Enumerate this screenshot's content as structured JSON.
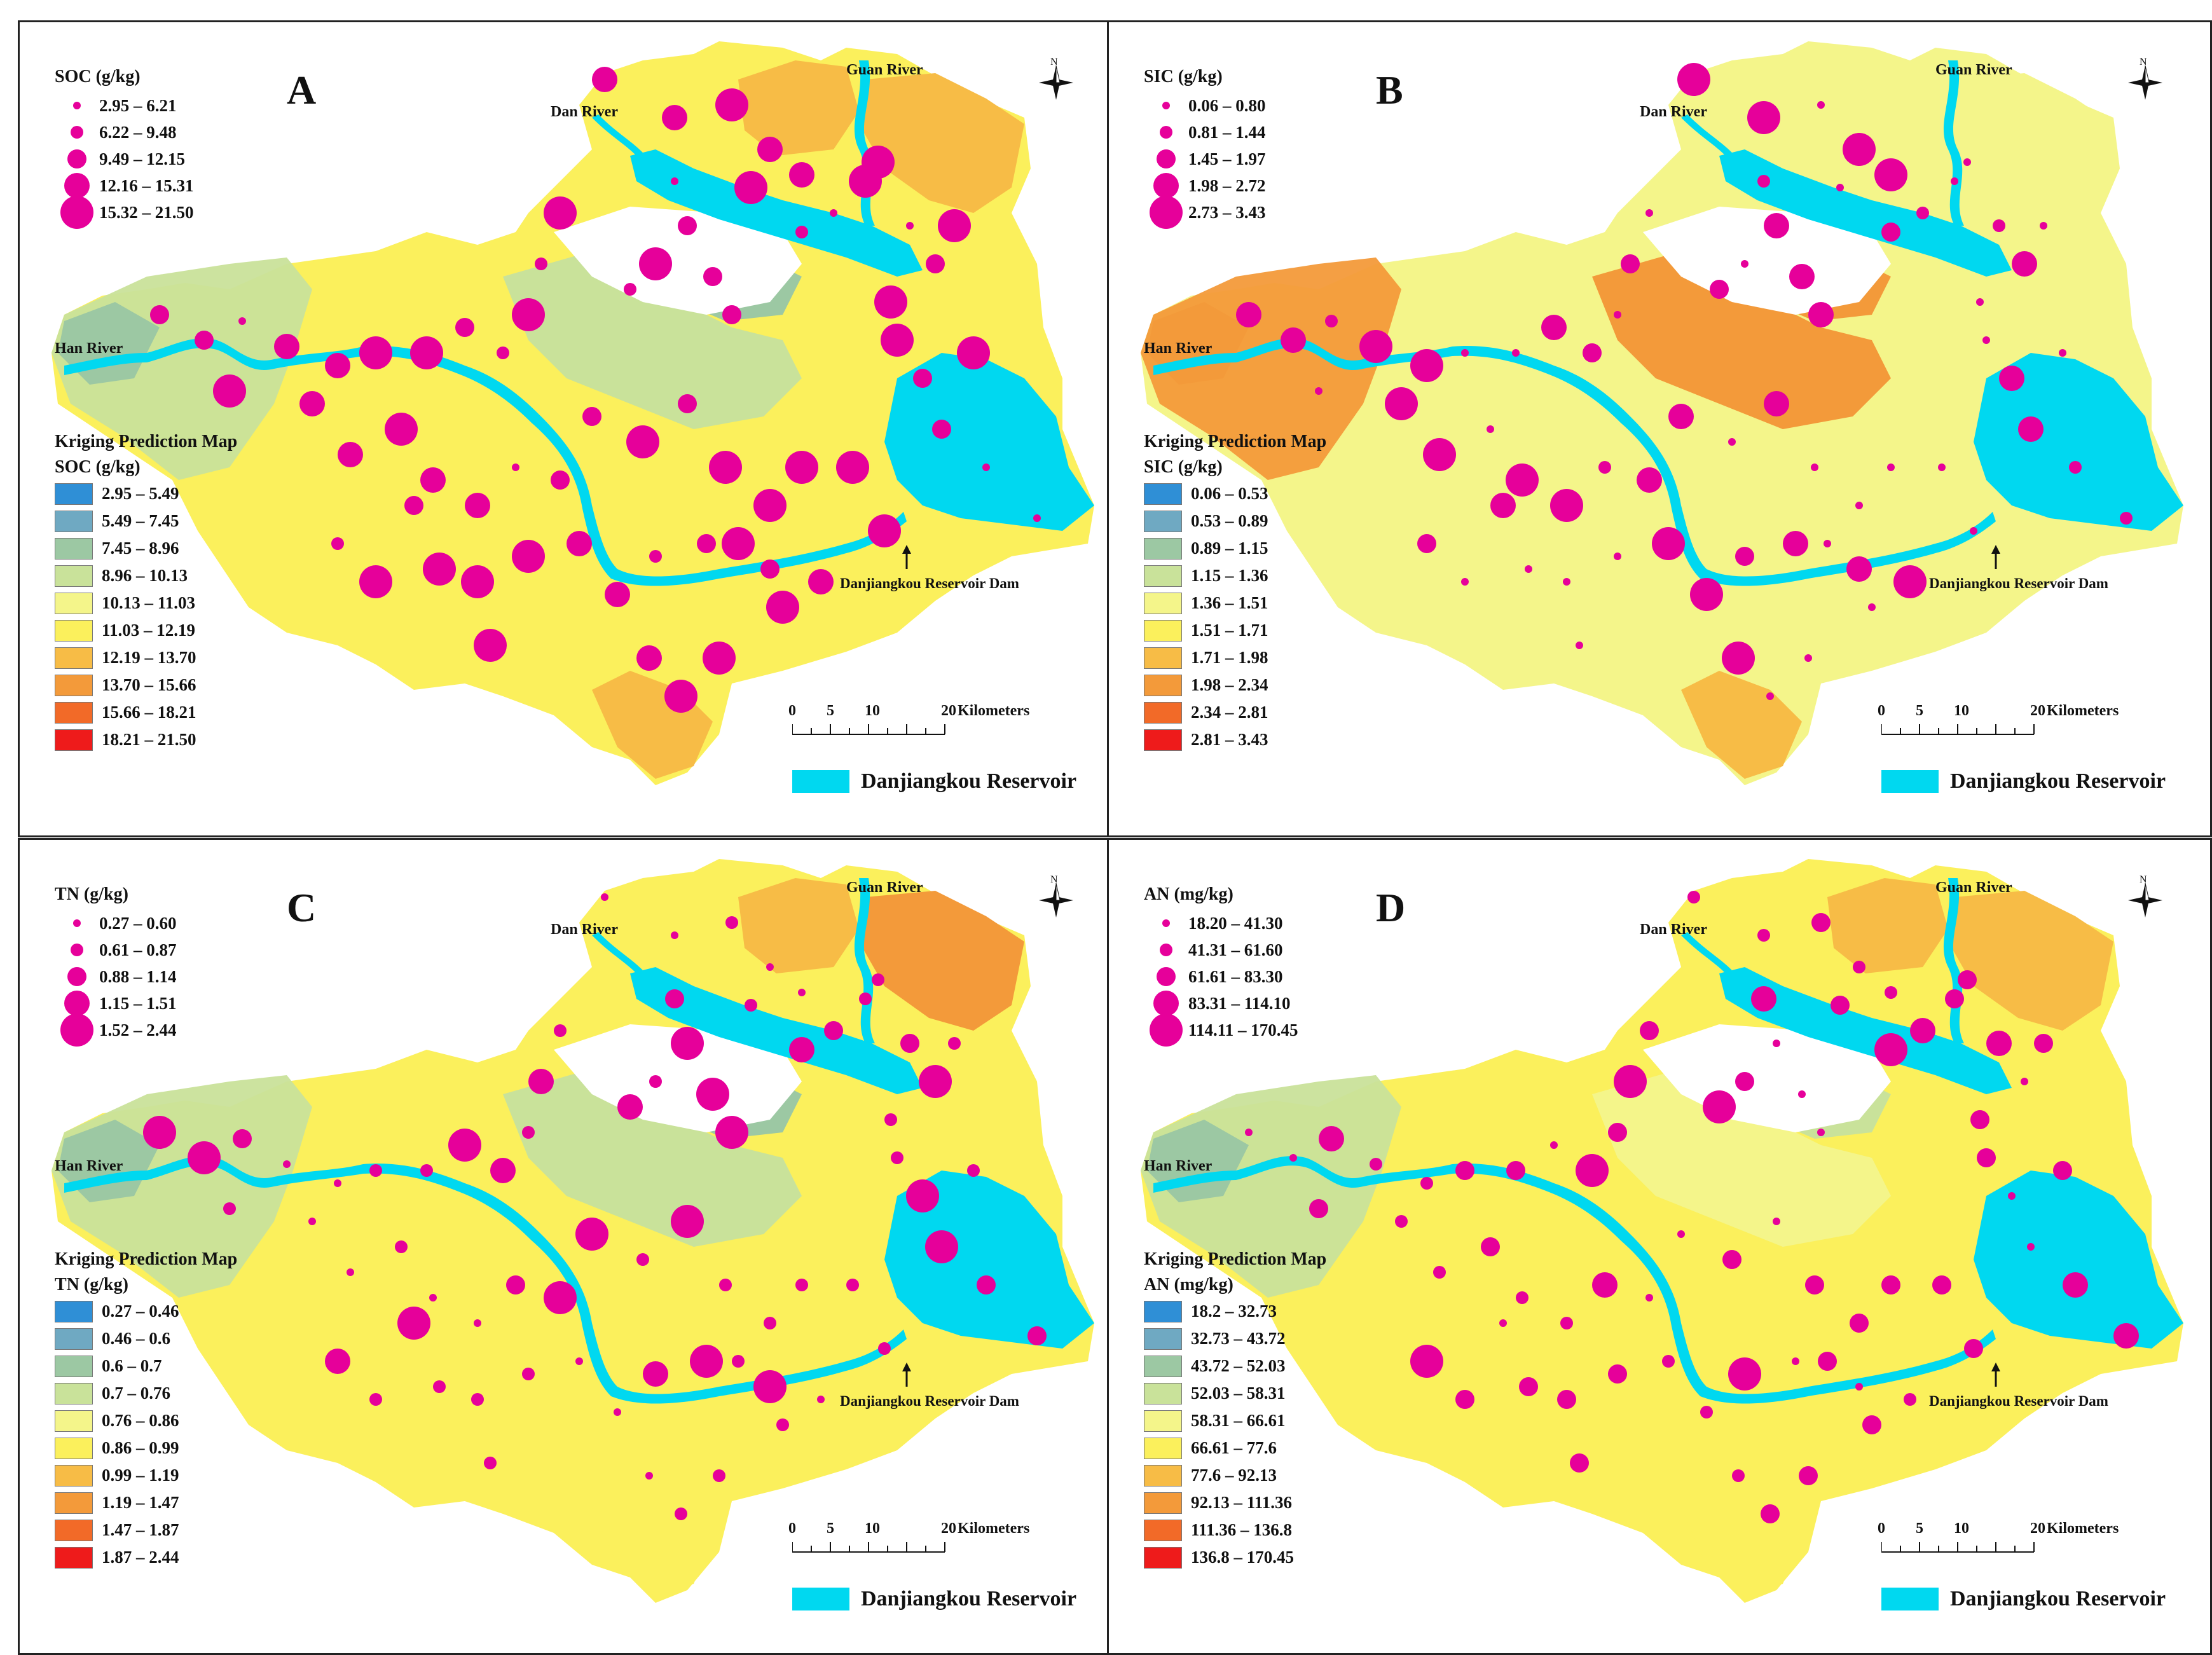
{
  "common": {
    "rivers": {
      "han": "Han River",
      "dan": "Dan River",
      "guan": "Guan River"
    },
    "dam_label": "Danjiangkou Reservoir Dam",
    "kriging_title": "Kriging Prediction Map",
    "scale": {
      "ticks": [
        "0",
        "5",
        "10",
        "20"
      ],
      "unit": "Kilometers"
    },
    "reservoir_label": "Danjiangkou Reservoir",
    "north_label": "N",
    "colors": {
      "reservoir": "#00d8f0",
      "point": "#e6009a",
      "ramp": [
        "#2f8fd6",
        "#6fa9c2",
        "#9cc8a3",
        "#c9e29a",
        "#f4f58a",
        "#fbf05c",
        "#f7bc46",
        "#f39a3a",
        "#f26a28",
        "#ee1b1b"
      ]
    }
  },
  "panels": [
    {
      "letter": "A",
      "point_title": "SOC (g/kg)",
      "point_classes": [
        "2.95 – 6.21",
        "6.22 – 9.48",
        "9.49 – 12.15",
        "12.16 – 15.31",
        "15.32 – 21.50"
      ],
      "kriging_unit": "SOC (g/kg)",
      "kriging_classes": [
        "2.95 – 5.49",
        "5.49 – 7.45",
        "7.45 – 8.96",
        "8.96 – 10.13",
        "10.13 – 11.03",
        "11.03 – 12.19",
        "12.19 – 13.70",
        "13.70 – 15.66",
        "15.66 – 18.21",
        "18.21 – 21.50"
      ]
    },
    {
      "letter": "B",
      "point_title": "SIC (g/kg)",
      "point_classes": [
        "0.06 – 0.80",
        "0.81 – 1.44",
        "1.45 – 1.97",
        "1.98 – 2.72",
        "2.73 – 3.43"
      ],
      "kriging_unit": "SIC (g/kg)",
      "kriging_classes": [
        "0.06 – 0.53",
        "0.53 – 0.89",
        "0.89 – 1.15",
        "1.15 – 1.36",
        "1.36 – 1.51",
        "1.51 – 1.71",
        "1.71 – 1.98",
        "1.98 – 2.34",
        "2.34 – 2.81",
        "2.81 – 3.43"
      ]
    },
    {
      "letter": "C",
      "point_title": "TN (g/kg)",
      "point_classes": [
        "0.27 – 0.60",
        "0.61 – 0.87",
        "0.88 – 1.14",
        "1.15 – 1.51",
        "1.52 – 2.44"
      ],
      "kriging_unit": "TN (g/kg)",
      "kriging_classes": [
        "0.27 – 0.46",
        "0.46 – 0.6",
        "0.6 – 0.7",
        "0.7 – 0.76",
        "0.76 – 0.86",
        "0.86 – 0.99",
        "0.99 – 1.19",
        "1.19 – 1.47",
        "1.47 – 1.87",
        "1.87 – 2.44"
      ]
    },
    {
      "letter": "D",
      "point_title": "AN (mg/kg)",
      "point_classes": [
        "18.20 – 41.30",
        "41.31 – 61.60",
        "61.61 – 83.30",
        "83.31 – 114.10",
        "114.11 – 170.45"
      ],
      "kriging_unit": "AN (mg/kg)",
      "kriging_classes": [
        "18.2 – 32.73",
        "32.73 – 43.72",
        "43.72 – 52.03",
        "52.03 – 58.31",
        "58.31 – 66.61",
        "66.61 – 77.6",
        "77.6 – 92.13",
        "92.13 – 111.36",
        "111.36 – 136.8",
        "136.8 – 170.45"
      ]
    }
  ]
}
